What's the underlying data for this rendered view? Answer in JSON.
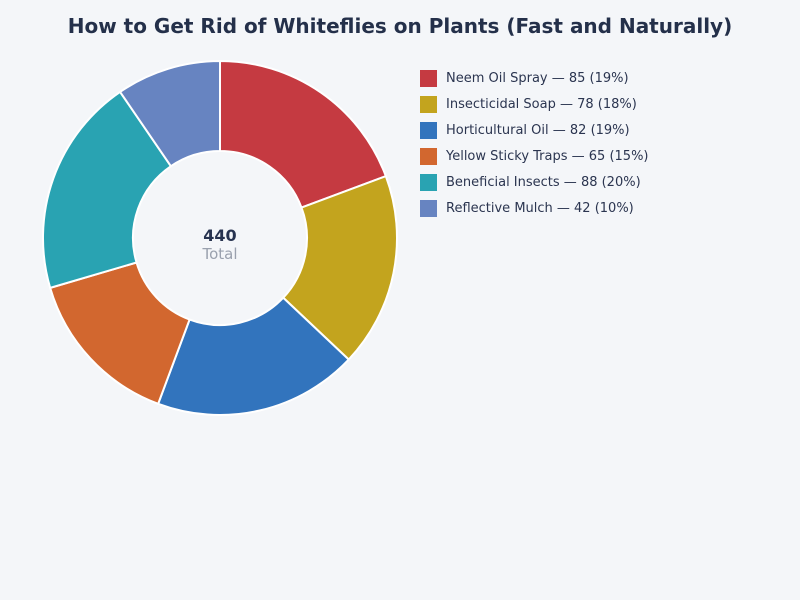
{
  "title": "How to Get Rid of Whiteflies on Plants (Fast and Naturally)",
  "center": {
    "value": "440",
    "label": "Total"
  },
  "colors": {
    "background": "#f4f6f9",
    "title_text": "#24304a",
    "legend_text": "#2b3550",
    "center_value_text": "#273350",
    "center_label_text": "#9aa1ae",
    "segment_divider": "#ffffff"
  },
  "chart_data": {
    "type": "pie",
    "subtype": "donut",
    "title": "How to Get Rid of Whiteflies on Plants (Fast and Naturally)",
    "total": 440,
    "center_value": 440,
    "center_label": "Total",
    "start_angle_deg": 0,
    "direction": "clockwise",
    "legend_position": "right",
    "segments": [
      {
        "id": "neem-oil-spray",
        "label": "Neem Oil Spray",
        "value": 85,
        "percent": "19%",
        "color": "#c53a41",
        "legend_text": "Neem Oil Spray — 85 (19%)"
      },
      {
        "id": "insecticidal-soap",
        "label": "Insecticidal Soap",
        "value": 78,
        "percent": "18%",
        "color": "#c3a41e",
        "legend_text": "Insecticidal Soap — 78 (18%)"
      },
      {
        "id": "horticultural-oil",
        "label": "Horticultural Oil",
        "value": 82,
        "percent": "19%",
        "color": "#3274bd",
        "legend_text": "Horticultural Oil — 82 (19%)"
      },
      {
        "id": "yellow-sticky-traps",
        "label": "Yellow Sticky Traps",
        "value": 65,
        "percent": "15%",
        "color": "#d2672f",
        "legend_text": "Yellow Sticky Traps — 65 (15%)"
      },
      {
        "id": "beneficial-insects",
        "label": "Beneficial Insects",
        "value": 88,
        "percent": "20%",
        "color": "#29a3b2",
        "legend_text": "Beneficial Insects — 88 (20%)"
      },
      {
        "id": "reflective-mulch",
        "label": "Reflective Mulch",
        "value": 42,
        "percent": "10%",
        "color": "#6784c1",
        "legend_text": "Reflective Mulch — 42 (10%)"
      }
    ]
  }
}
